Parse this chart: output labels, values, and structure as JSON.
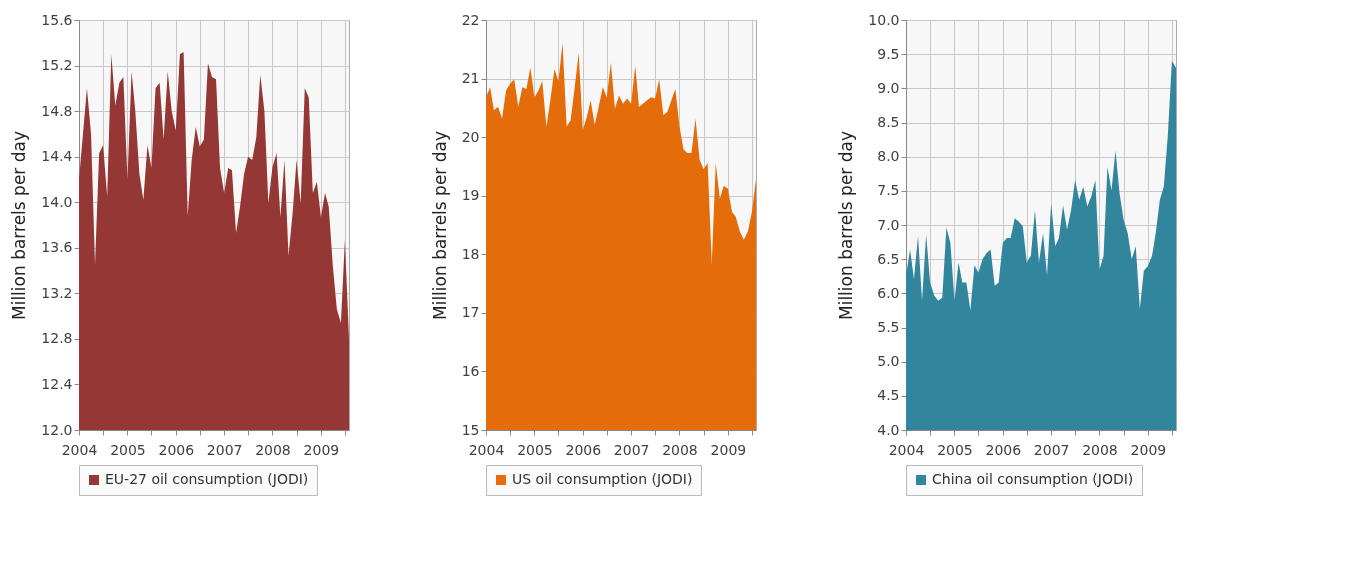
{
  "chart_data": [
    {
      "type": "area",
      "ylabel": "Million barrels per day",
      "legend": "bottom",
      "grid": true,
      "xlim": [
        "2004-01",
        "2009-08"
      ],
      "xticks": [
        "2004",
        {
          "value": "2004-07",
          "label": null
        },
        "2005",
        {
          "value": "2005-07",
          "label": null
        },
        "2006",
        {
          "value": "2006-07",
          "label": null
        },
        "2007",
        {
          "value": "2007-07",
          "label": null
        },
        "2008",
        {
          "value": "2008-07",
          "label": null
        },
        "2009",
        {
          "value": "2009-07",
          "label": null
        }
      ],
      "ylim": [
        12,
        15.6
      ],
      "yticks": [
        {
          "value": 12,
          "label": "12.0"
        },
        12.4,
        12.8,
        13.2,
        13.6,
        {
          "value": 14,
          "label": "14.0"
        },
        14.4,
        14.8,
        15.2,
        15.6
      ],
      "x": [
        "2004-01",
        "2004-03",
        "2004-04",
        "2004-05",
        "2004-06",
        "2004-07",
        "2004-08",
        "2004-09",
        "2004-10",
        "2004-11",
        "2004-12",
        "2005-01",
        "2005-02",
        "2005-03",
        "2005-04",
        "2005-05",
        "2005-06",
        "2005-07",
        "2005-08",
        "2005-09",
        "2005-10",
        "2005-11",
        "2005-12",
        "2006-01",
        "2006-02",
        "2006-03",
        "2006-04",
        "2006-05",
        "2006-06",
        "2006-07",
        "2006-08",
        "2006-09",
        "2006-10",
        "2006-11",
        "2006-12",
        "2007-01",
        "2007-02",
        "2007-03",
        "2007-04",
        "2007-05",
        "2007-06",
        "2007-07",
        "2007-08",
        "2007-09",
        "2007-10",
        "2007-11",
        "2007-12",
        "2008-01",
        "2008-02",
        "2008-03",
        "2008-04",
        "2008-05",
        "2008-06",
        "2008-07",
        "2008-08",
        "2008-09",
        "2008-10",
        "2008-11",
        "2008-12",
        "2009-01",
        "2009-02",
        "2009-03",
        "2009-04",
        "2009-05",
        "2009-06",
        "2009-07",
        "2009-08"
      ],
      "series": [
        {
          "name": "EU-27 oil consumption (JODI)",
          "color": "#953735",
          "values": [
            14.2,
            15.0,
            14.6,
            13.45,
            14.43,
            14.5,
            14.05,
            15.3,
            14.85,
            15.05,
            15.1,
            14.2,
            15.15,
            14.8,
            14.25,
            14.02,
            14.5,
            14.3,
            15.0,
            15.05,
            14.55,
            15.15,
            14.8,
            14.63,
            15.3,
            15.32,
            13.88,
            14.37,
            14.66,
            14.49,
            14.55,
            15.22,
            15.1,
            15.08,
            14.3,
            14.08,
            14.3,
            14.28,
            13.73,
            13.96,
            14.25,
            14.4,
            14.37,
            14.57,
            15.12,
            14.8,
            13.99,
            14.31,
            14.43,
            13.87,
            14.37,
            13.53,
            13.9,
            14.37,
            13.99,
            15.0,
            14.92,
            14.08,
            14.18,
            13.87,
            14.08,
            13.96,
            13.44,
            13.06,
            12.94,
            13.67,
            12.8
          ]
        }
      ]
    },
    {
      "type": "area",
      "ylabel": "Million barrels per day",
      "legend": "bottom",
      "grid": true,
      "xlim": [
        "2004-01",
        "2009-08"
      ],
      "xticks": [
        "2004",
        {
          "value": "2004-07",
          "label": null
        },
        "2005",
        {
          "value": "2005-07",
          "label": null
        },
        "2006",
        {
          "value": "2006-07",
          "label": null
        },
        "2007",
        {
          "value": "2007-07",
          "label": null
        },
        "2008",
        {
          "value": "2008-07",
          "label": null
        },
        "2009",
        {
          "value": "2009-07",
          "label": null
        }
      ],
      "ylim": [
        15,
        22
      ],
      "yticks": [
        15,
        16,
        17,
        18,
        19,
        20,
        21,
        22
      ],
      "x": [
        "2004-01",
        "2004-02",
        "2004-03",
        "2004-04",
        "2004-05",
        "2004-06",
        "2004-07",
        "2004-08",
        "2004-09",
        "2004-10",
        "2004-11",
        "2004-12",
        "2005-01",
        "2005-02",
        "2005-03",
        "2005-04",
        "2005-05",
        "2005-06",
        "2005-07",
        "2005-08",
        "2005-09",
        "2005-10",
        "2005-11",
        "2005-12",
        "2006-01",
        "2006-02",
        "2006-03",
        "2006-04",
        "2006-05",
        "2006-06",
        "2006-07",
        "2006-08",
        "2006-09",
        "2006-10",
        "2006-11",
        "2006-12",
        "2007-01",
        "2007-02",
        "2007-03",
        "2007-04",
        "2007-05",
        "2007-06",
        "2007-07",
        "2007-08",
        "2007-09",
        "2007-10",
        "2007-11",
        "2007-12",
        "2008-01",
        "2008-02",
        "2008-03",
        "2008-04",
        "2008-05",
        "2008-06",
        "2008-07",
        "2008-08",
        "2008-09",
        "2008-10",
        "2008-11",
        "2008-12",
        "2009-01",
        "2009-02",
        "2009-03",
        "2009-04",
        "2009-05",
        "2009-06",
        "2009-07",
        "2009-08"
      ],
      "series": [
        {
          "name": "US oil consumption (JODI)",
          "color": "#e46c0a",
          "values": [
            20.68,
            20.85,
            20.46,
            20.52,
            20.32,
            20.8,
            20.91,
            20.99,
            20.52,
            20.85,
            20.82,
            21.19,
            20.68,
            20.8,
            20.96,
            20.18,
            20.63,
            21.16,
            20.96,
            21.61,
            20.18,
            20.29,
            20.85,
            21.44,
            20.12,
            20.35,
            20.63,
            20.21,
            20.52,
            20.85,
            20.68,
            21.27,
            20.49,
            20.71,
            20.57,
            20.66,
            20.57,
            21.22,
            20.52,
            20.57,
            20.63,
            20.68,
            20.66,
            20.99,
            20.38,
            20.43,
            20.63,
            20.82,
            20.18,
            19.79,
            19.73,
            19.73,
            20.32,
            19.62,
            19.45,
            19.56,
            17.83,
            19.56,
            18.95,
            19.17,
            19.12,
            18.72,
            18.64,
            18.39,
            18.25,
            18.39,
            18.72,
            19.28
          ]
        }
      ]
    },
    {
      "type": "area",
      "ylabel": "Million barrels per day",
      "legend": "bottom",
      "grid": true,
      "xlim": [
        "2004-01",
        "2009-08"
      ],
      "xticks": [
        "2004",
        {
          "value": "2004-07",
          "label": null
        },
        "2005",
        {
          "value": "2005-07",
          "label": null
        },
        "2006",
        {
          "value": "2006-07",
          "label": null
        },
        "2007",
        {
          "value": "2007-07",
          "label": null
        },
        "2008",
        {
          "value": "2008-07",
          "label": null
        },
        "2009",
        {
          "value": "2009-07",
          "label": null
        }
      ],
      "ylim": [
        4,
        10
      ],
      "yticks": [
        {
          "value": 4,
          "label": "4.0"
        },
        4.5,
        {
          "value": 5,
          "label": "5.0"
        },
        5.5,
        {
          "value": 6,
          "label": "6.0"
        },
        6.5,
        {
          "value": 7,
          "label": "7.0"
        },
        7.5,
        {
          "value": 8,
          "label": "8.0"
        },
        8.5,
        {
          "value": 9,
          "label": "9.0"
        },
        9.5,
        {
          "value": 10,
          "label": "10.0"
        }
      ],
      "x": [
        "2004-01",
        "2004-02",
        "2004-03",
        "2004-04",
        "2004-05",
        "2004-06",
        "2004-07",
        "2004-08",
        "2004-09",
        "2004-10",
        "2004-11",
        "2004-12",
        "2005-01",
        "2005-02",
        "2005-03",
        "2005-04",
        "2005-05",
        "2005-06",
        "2005-07",
        "2005-08",
        "2005-09",
        "2005-10",
        "2005-11",
        "2005-12",
        "2006-01",
        "2006-02",
        "2006-03",
        "2006-04",
        "2006-05",
        "2006-06",
        "2006-07",
        "2006-08",
        "2006-09",
        "2006-10",
        "2006-11",
        "2006-12",
        "2007-01",
        "2007-02",
        "2007-03",
        "2007-04",
        "2007-05",
        "2007-06",
        "2007-07",
        "2007-08",
        "2007-09",
        "2007-10",
        "2007-11",
        "2007-12",
        "2008-01",
        "2008-02",
        "2008-03",
        "2008-04",
        "2008-05",
        "2008-06",
        "2008-07",
        "2008-08",
        "2008-09",
        "2008-10",
        "2008-11",
        "2008-12",
        "2009-01",
        "2009-02",
        "2009-03",
        "2009-04",
        "2009-05",
        "2009-06",
        "2009-07",
        "2009-08"
      ],
      "series": [
        {
          "name": "China oil consumption (JODI)",
          "color": "#31859c",
          "values": [
            6.26,
            6.64,
            6.21,
            6.84,
            5.89,
            6.86,
            6.16,
            5.97,
            5.89,
            5.94,
            6.96,
            6.74,
            5.89,
            6.45,
            6.16,
            6.16,
            5.75,
            6.41,
            6.3,
            6.5,
            6.59,
            6.64,
            6.11,
            6.16,
            6.74,
            6.81,
            6.81,
            7.1,
            7.05,
            6.98,
            6.45,
            6.55,
            7.22,
            6.45,
            6.88,
            6.26,
            7.32,
            6.69,
            6.81,
            7.29,
            6.93,
            7.22,
            7.66,
            7.37,
            7.56,
            7.27,
            7.42,
            7.66,
            6.35,
            6.55,
            7.85,
            7.51,
            8.09,
            7.46,
            7.08,
            6.88,
            6.5,
            6.69,
            5.77,
            6.33,
            6.4,
            6.55,
            6.88,
            7.37,
            7.56,
            8.33,
            9.4,
            9.3
          ]
        }
      ]
    }
  ]
}
